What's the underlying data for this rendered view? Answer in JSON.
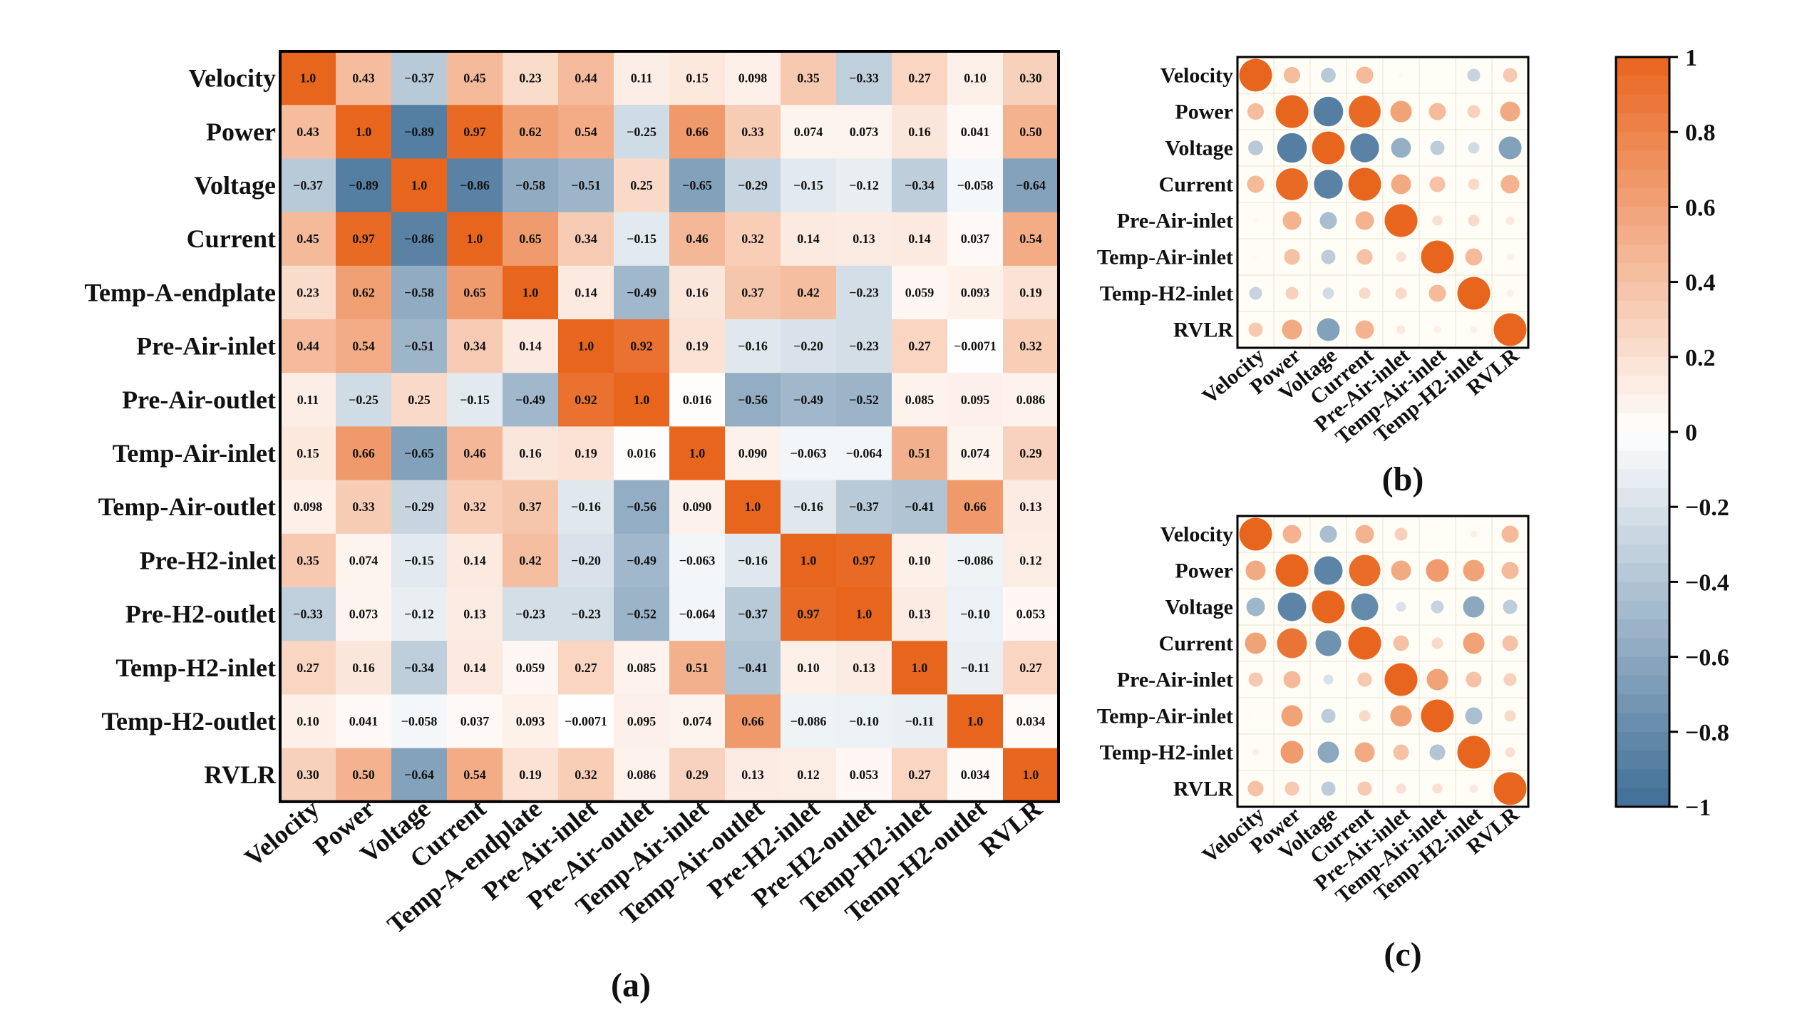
{
  "chart_data": [
    {
      "type": "heatmap",
      "panel_label": "(a)",
      "labels": [
        "Velocity",
        "Power",
        "Voltage",
        "Current",
        "Temp-A-endplate",
        "Pre-Air-inlet",
        "Pre-Air-outlet",
        "Temp-Air-inlet",
        "Temp-Air-outlet",
        "Pre-H2-inlet",
        "Pre-H2-outlet",
        "Temp-H2-inlet",
        "Temp-H2-outlet",
        "RVLR"
      ],
      "matrix": [
        [
          "1.0",
          "0.43",
          "-0.37",
          "0.45",
          "0.23",
          "0.44",
          "0.11",
          "0.15",
          "0.098",
          "0.35",
          "-0.33",
          "0.27",
          "0.10",
          "0.30"
        ],
        [
          "0.43",
          "1.0",
          "-0.89",
          "0.97",
          "0.62",
          "0.54",
          "-0.25",
          "0.66",
          "0.33",
          "0.074",
          "0.073",
          "0.16",
          "0.041",
          "0.50"
        ],
        [
          "-0.37",
          "-0.89",
          "1.0",
          "-0.86",
          "-0.58",
          "-0.51",
          "0.25",
          "-0.65",
          "-0.29",
          "-0.15",
          "-0.12",
          "-0.34",
          "-0.058",
          "-0.64"
        ],
        [
          "0.45",
          "0.97",
          "-0.86",
          "1.0",
          "0.65",
          "0.34",
          "-0.15",
          "0.46",
          "0.32",
          "0.14",
          "0.13",
          "0.14",
          "0.037",
          "0.54"
        ],
        [
          "0.23",
          "0.62",
          "-0.58",
          "0.65",
          "1.0",
          "0.14",
          "-0.49",
          "0.16",
          "0.37",
          "0.42",
          "-0.23",
          "0.059",
          "0.093",
          "0.19"
        ],
        [
          "0.44",
          "0.54",
          "-0.51",
          "0.34",
          "0.14",
          "1.0",
          "0.92",
          "0.19",
          "-0.16",
          "-0.20",
          "-0.23",
          "0.27",
          "-0.0071",
          "0.32"
        ],
        [
          "0.11",
          "-0.25",
          "0.25",
          "-0.15",
          "-0.49",
          "0.92",
          "1.0",
          "0.016",
          "-0.56",
          "-0.49",
          "-0.52",
          "0.085",
          "0.095",
          "0.086"
        ],
        [
          "0.15",
          "0.66",
          "-0.65",
          "0.46",
          "0.16",
          "0.19",
          "0.016",
          "1.0",
          "0.090",
          "-0.063",
          "-0.064",
          "0.51",
          "0.074",
          "0.29"
        ],
        [
          "0.098",
          "0.33",
          "-0.29",
          "0.32",
          "0.37",
          "-0.16",
          "-0.56",
          "0.090",
          "1.0",
          "-0.16",
          "-0.37",
          "-0.41",
          "0.66",
          "0.13"
        ],
        [
          "0.35",
          "0.074",
          "-0.15",
          "0.14",
          "0.42",
          "-0.20",
          "-0.49",
          "-0.063",
          "-0.16",
          "1.0",
          "0.97",
          "0.10",
          "-0.086",
          "0.12"
        ],
        [
          "-0.33",
          "0.073",
          "-0.12",
          "0.13",
          "-0.23",
          "-0.23",
          "-0.52",
          "-0.064",
          "-0.37",
          "0.97",
          "1.0",
          "0.13",
          "-0.10",
          "0.053"
        ],
        [
          "0.27",
          "0.16",
          "-0.34",
          "0.14",
          "0.059",
          "0.27",
          "0.085",
          "0.51",
          "-0.41",
          "0.10",
          "0.13",
          "1.0",
          "-0.11",
          "0.27"
        ],
        [
          "0.10",
          "0.041",
          "-0.058",
          "0.037",
          "0.093",
          "-0.0071",
          "0.095",
          "0.074",
          "0.66",
          "-0.086",
          "-0.10",
          "-0.11",
          "1.0",
          "0.034"
        ],
        [
          "0.30",
          "0.50",
          "-0.64",
          "0.54",
          "0.19",
          "0.32",
          "0.086",
          "0.29",
          "0.13",
          "0.12",
          "0.053",
          "0.27",
          "0.034",
          "1.0"
        ]
      ]
    },
    {
      "type": "heatmap",
      "style": "circle",
      "panel_label": "(b)",
      "labels": [
        "Velocity",
        "Power",
        "Voltage",
        "Current",
        "Pre-Air-inlet",
        "Temp-Air-inlet",
        "Temp-H2-inlet",
        "RVLR"
      ],
      "matrix": [
        [
          1.0,
          0.43,
          -0.37,
          0.45,
          0.05,
          0.02,
          -0.3,
          0.35
        ],
        [
          0.43,
          1.0,
          -0.89,
          0.97,
          0.6,
          0.45,
          0.3,
          0.55
        ],
        [
          -0.37,
          -0.89,
          1.0,
          -0.86,
          -0.55,
          -0.35,
          -0.25,
          -0.65
        ],
        [
          0.45,
          0.97,
          -0.86,
          1.0,
          0.55,
          0.4,
          0.25,
          0.5
        ],
        [
          0.05,
          0.5,
          -0.45,
          0.5,
          1.0,
          0.2,
          0.25,
          0.15
        ],
        [
          0.03,
          0.4,
          -0.35,
          0.4,
          0.2,
          1.0,
          0.45,
          0.1
        ],
        [
          -0.3,
          0.3,
          -0.25,
          0.25,
          0.25,
          0.45,
          1.0,
          0.1
        ],
        [
          0.35,
          0.55,
          -0.65,
          0.5,
          0.15,
          0.1,
          0.1,
          1.0
        ]
      ]
    },
    {
      "type": "heatmap",
      "style": "circle",
      "panel_label": "(c)",
      "labels": [
        "Velocity",
        "Power",
        "Voltage",
        "Current",
        "Pre-Air-inlet",
        "Temp-Air-inlet",
        "Temp-H2-inlet",
        "RVLR"
      ],
      "matrix": [
        [
          1.0,
          0.5,
          -0.45,
          0.5,
          0.3,
          0.0,
          0.1,
          0.45
        ],
        [
          0.55,
          1.0,
          -0.85,
          0.95,
          0.55,
          0.65,
          0.6,
          0.45
        ],
        [
          -0.5,
          -0.85,
          1.0,
          -0.8,
          -0.2,
          -0.3,
          -0.6,
          -0.35
        ],
        [
          0.6,
          0.9,
          -0.75,
          1.0,
          0.4,
          0.25,
          0.6,
          0.4
        ],
        [
          0.35,
          0.45,
          -0.2,
          0.35,
          1.0,
          0.6,
          0.4,
          0.3
        ],
        [
          0.0,
          0.6,
          -0.35,
          0.25,
          0.6,
          1.0,
          -0.45,
          0.25
        ],
        [
          0.1,
          0.65,
          -0.6,
          0.55,
          0.4,
          -0.4,
          1.0,
          0.2
        ],
        [
          0.4,
          0.35,
          -0.35,
          0.35,
          0.2,
          0.2,
          0.15,
          1.0
        ]
      ]
    }
  ],
  "colorbar": {
    "range": [
      -1,
      1
    ],
    "ticks": [
      1,
      0.8,
      0.6,
      0.4,
      0.2,
      0,
      -0.2,
      -0.4,
      -0.6,
      -0.8,
      -1
    ],
    "tick_labels": [
      "1",
      "0.8",
      "0.6",
      "0.4",
      "0.2",
      "0",
      "−0.2",
      "−0.4",
      "−0.6",
      "−0.8",
      "−1"
    ],
    "colors": {
      "negative": "#3f6e96",
      "neutral": "#ffffff",
      "positive": "#e8651e"
    }
  }
}
